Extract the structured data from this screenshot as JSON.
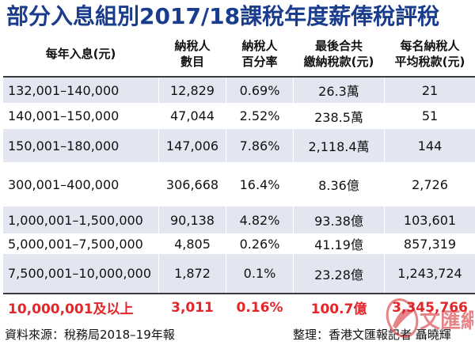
{
  "title": "部分入息組別2017/18課稅年度薪俸稅評稅",
  "table": {
    "headers": [
      [
        "每年入息(元)"
      ],
      [
        "納稅人",
        "數目"
      ],
      [
        "納稅人",
        "百分率"
      ],
      [
        "最後合共",
        "繳納稅款(元)"
      ],
      [
        "每名納稅人",
        "平均稅款(元)"
      ]
    ],
    "rows": [
      [
        "132,001–140,000",
        "12,829",
        "0.69%",
        "26.3萬",
        "21"
      ],
      [
        "140,001–150,000",
        "47,044",
        "2.52%",
        "238.5萬",
        "51"
      ],
      [
        "150,001–180,000",
        "147,006",
        "7.86%",
        "2,118.4萬",
        "144"
      ],
      [
        "300,001–400,000",
        "306,668",
        "16.4%",
        "8.36億",
        "2,726"
      ],
      [
        "1,000,001–1,500,000",
        "90,138",
        "4.82%",
        "93.38億",
        "103,601"
      ],
      [
        "5,000,001–7,500,000",
        "4,805",
        "0.26%",
        "41.19億",
        "857,319"
      ],
      [
        "7,500,001–10,000,000",
        "1,872",
        "0.1%",
        "23.28億",
        "1,243,724"
      ],
      [
        "10,000,001及以上",
        "3,011",
        "0.16%",
        "100.7億",
        "3,345,766"
      ]
    ]
  },
  "footer": {
    "source": "資料來源：稅務局2018–19年報",
    "credit": "整理：香港文匯報記者 聶曉輝"
  },
  "watermark": {
    "text": "文匯網"
  },
  "colors": {
    "title": "#1a3c8c",
    "highlight": "#e3262a",
    "stripe": "#e3e6f0"
  }
}
